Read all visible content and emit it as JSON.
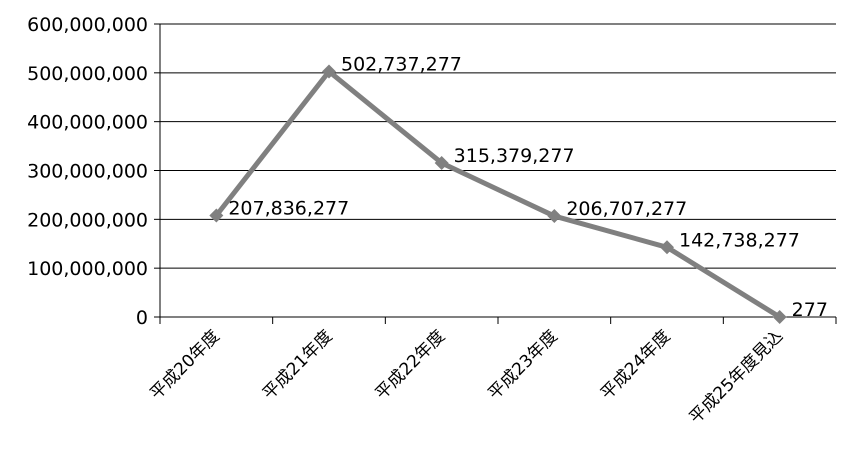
{
  "chart_data": {
    "type": "line",
    "categories": [
      "平成20年度",
      "平成21年度",
      "平成22年度",
      "平成23年度",
      "平成24年度",
      "平成25年度見込"
    ],
    "values": [
      207836277,
      502737277,
      315379277,
      206707277,
      142738277,
      277
    ],
    "data_labels": [
      "207,836,277",
      "502,737,277",
      "315,379,277",
      "206,707,277",
      "142,738,277",
      "277"
    ],
    "y_ticks": [
      0,
      100000000,
      200000000,
      300000000,
      400000000,
      500000000,
      600000000
    ],
    "y_tick_labels": [
      "0",
      "100,000,000",
      "200,000,000",
      "300,000,000",
      "400,000,000",
      "500,000,000",
      "600,000,000"
    ],
    "ylim": [
      0,
      600000000
    ],
    "title": "",
    "xlabel": "",
    "ylabel": "",
    "grid": true,
    "legend": "none",
    "marker": "diamond",
    "colors": {
      "series": "#808080",
      "grid": "#000000",
      "axis": "#000000"
    }
  }
}
